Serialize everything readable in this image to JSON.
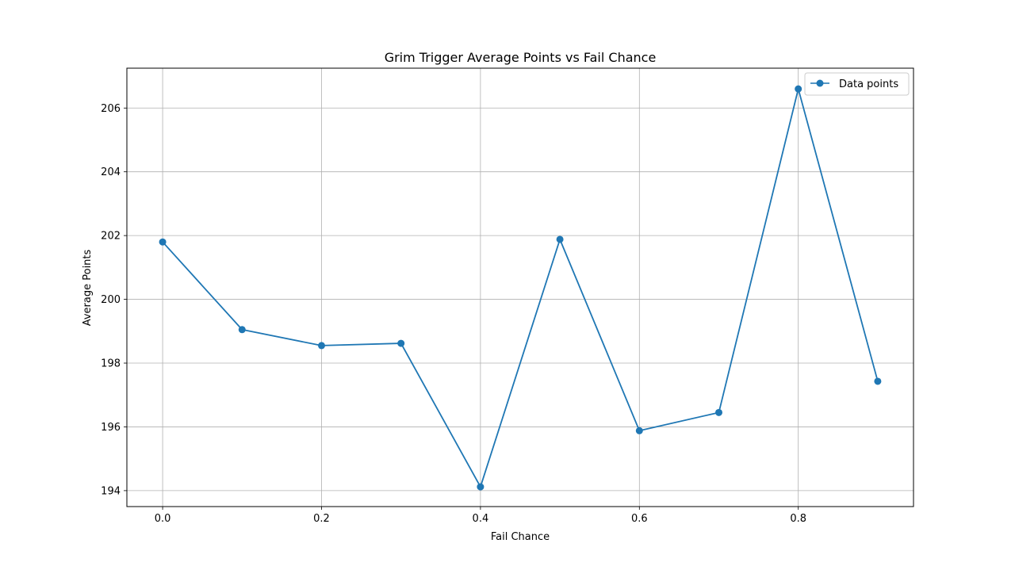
{
  "chart_data": {
    "type": "line",
    "title": "Grim Trigger Average Points vs Fail Chance",
    "xlabel": "Fail Chance",
    "ylabel": "Average Points",
    "x": [
      0.0,
      0.1,
      0.2,
      0.3,
      0.4,
      0.5,
      0.6,
      0.7,
      0.8,
      0.9
    ],
    "series": [
      {
        "name": "Data points",
        "values": [
          201.8,
          199.05,
          198.55,
          198.62,
          194.12,
          201.88,
          195.88,
          196.45,
          206.6,
          197.43
        ],
        "color": "#1f77b4",
        "marker": "circle"
      }
    ],
    "xlim": [
      -0.045,
      0.945
    ],
    "ylim": [
      193.5,
      207.25
    ],
    "xticks": [
      0.0,
      0.2,
      0.4,
      0.6,
      0.8
    ],
    "xtick_labels": [
      "0.0",
      "0.2",
      "0.4",
      "0.6",
      "0.8"
    ],
    "yticks": [
      194,
      196,
      198,
      200,
      202,
      204,
      206
    ],
    "ytick_labels": [
      "194",
      "196",
      "198",
      "200",
      "202",
      "204",
      "206"
    ],
    "grid": true,
    "legend_position": "top-right"
  }
}
